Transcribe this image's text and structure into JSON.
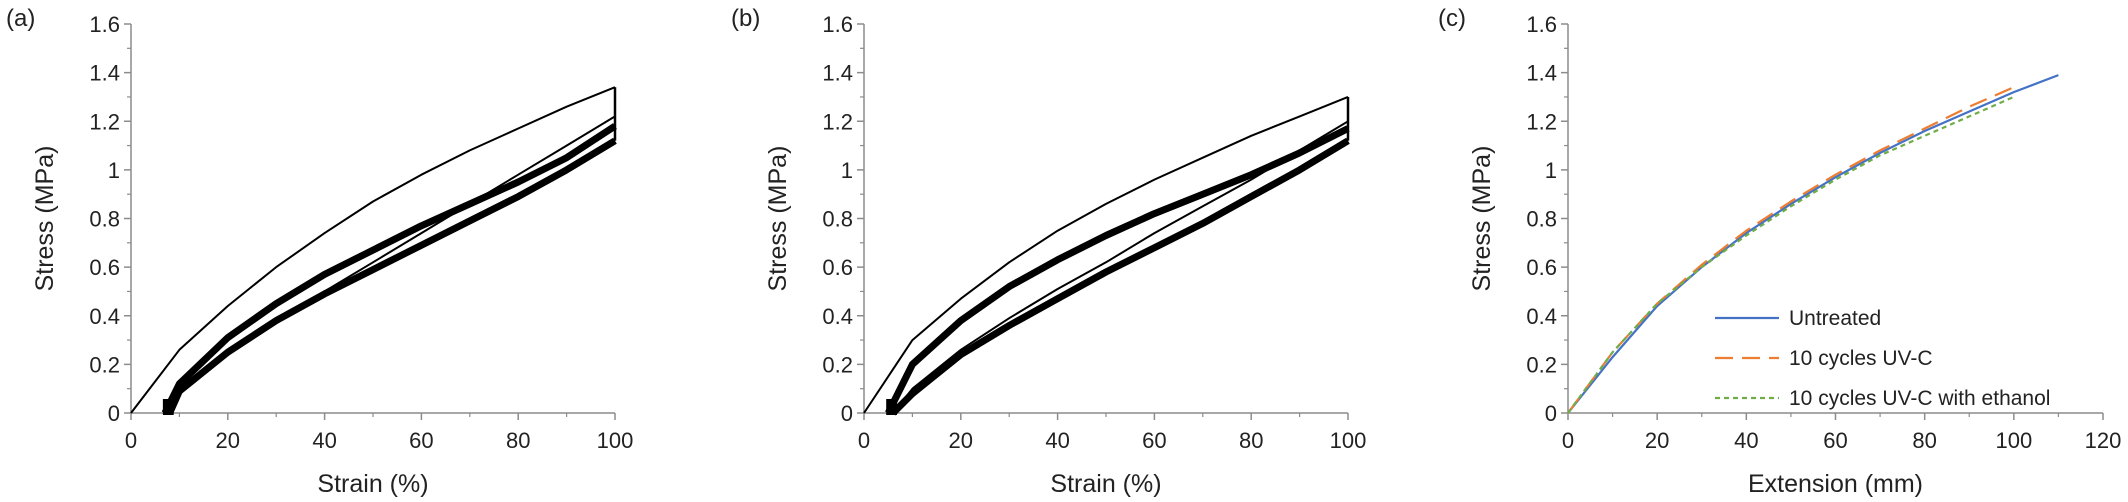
{
  "chart_data": [
    {
      "panel_label": "(a)",
      "type": "line",
      "xlabel": "Strain (%)",
      "ylabel": "Stress (MPa)",
      "xlim": [
        0,
        100
      ],
      "ylim": [
        0,
        1.6
      ],
      "xticks": [
        0,
        20,
        40,
        60,
        80,
        100
      ],
      "yticks": [
        0,
        0.2,
        0.4,
        0.6,
        0.8,
        1,
        1.2,
        1.4,
        1.6
      ],
      "grid": false,
      "series_color": "#000000",
      "series": [
        {
          "role": "first loading",
          "x": [
            0,
            10,
            20,
            30,
            40,
            50,
            60,
            70,
            80,
            90,
            100
          ],
          "y": [
            0,
            0.26,
            0.44,
            0.6,
            0.74,
            0.87,
            0.98,
            1.08,
            1.17,
            1.26,
            1.34
          ]
        },
        {
          "role": "first unloading",
          "x": [
            100,
            90,
            80,
            70,
            60,
            50,
            40,
            30,
            20,
            10,
            8
          ],
          "y": [
            1.22,
            1.1,
            0.98,
            0.86,
            0.74,
            0.62,
            0.5,
            0.38,
            0.25,
            0.08,
            0
          ]
        },
        {
          "role": "repeated loading",
          "x": [
            7,
            10,
            20,
            30,
            40,
            50,
            60,
            70,
            80,
            90,
            100
          ],
          "y": [
            0,
            0.12,
            0.31,
            0.45,
            0.57,
            0.67,
            0.77,
            0.86,
            0.95,
            1.05,
            1.18
          ]
        },
        {
          "role": "repeated unloading",
          "x": [
            100,
            90,
            80,
            70,
            60,
            50,
            40,
            30,
            20,
            10,
            8
          ],
          "y": [
            1.12,
            1.0,
            0.89,
            0.79,
            0.69,
            0.59,
            0.49,
            0.38,
            0.25,
            0.09,
            0
          ]
        }
      ]
    },
    {
      "panel_label": "(b)",
      "type": "line",
      "xlabel": "Strain (%)",
      "ylabel": "Stress (MPa)",
      "xlim": [
        0,
        100
      ],
      "ylim": [
        0,
        1.6
      ],
      "xticks": [
        0,
        20,
        40,
        60,
        80,
        100
      ],
      "yticks": [
        0,
        0.2,
        0.4,
        0.6,
        0.8,
        1,
        1.2,
        1.4,
        1.6
      ],
      "grid": false,
      "series_color": "#000000",
      "series": [
        {
          "role": "first loading",
          "x": [
            0,
            10,
            20,
            30,
            40,
            50,
            60,
            70,
            80,
            90,
            100
          ],
          "y": [
            0,
            0.3,
            0.47,
            0.62,
            0.75,
            0.86,
            0.96,
            1.05,
            1.14,
            1.22,
            1.3
          ]
        },
        {
          "role": "first unloading",
          "x": [
            100,
            90,
            80,
            70,
            60,
            50,
            40,
            30,
            20,
            10,
            6
          ],
          "y": [
            1.2,
            1.08,
            0.96,
            0.85,
            0.74,
            0.62,
            0.51,
            0.39,
            0.26,
            0.1,
            0
          ]
        },
        {
          "role": "repeated loading",
          "x": [
            5,
            10,
            20,
            30,
            40,
            50,
            60,
            70,
            80,
            90,
            100
          ],
          "y": [
            0,
            0.2,
            0.38,
            0.52,
            0.63,
            0.73,
            0.82,
            0.9,
            0.98,
            1.07,
            1.17
          ]
        },
        {
          "role": "repeated unloading",
          "x": [
            100,
            90,
            80,
            70,
            60,
            50,
            40,
            30,
            20,
            10,
            6
          ],
          "y": [
            1.12,
            1.0,
            0.89,
            0.78,
            0.68,
            0.58,
            0.47,
            0.36,
            0.24,
            0.08,
            0
          ]
        }
      ]
    },
    {
      "panel_label": "(c)",
      "type": "line",
      "xlabel": "Extension (mm)",
      "ylabel": "Stress (MPa)",
      "xlim": [
        0,
        120
      ],
      "ylim": [
        0,
        1.6
      ],
      "xticks": [
        0,
        20,
        40,
        60,
        80,
        100,
        120
      ],
      "yticks": [
        0,
        0.2,
        0.4,
        0.6,
        0.8,
        1,
        1.2,
        1.4,
        1.6
      ],
      "grid": false,
      "legend_position": "bottom-right",
      "series": [
        {
          "name": "Untreated",
          "color": "#4472C4",
          "dash": "solid",
          "x": [
            0,
            10,
            20,
            30,
            40,
            50,
            60,
            70,
            80,
            90,
            100,
            110
          ],
          "y": [
            0,
            0.23,
            0.44,
            0.6,
            0.74,
            0.86,
            0.97,
            1.07,
            1.16,
            1.24,
            1.32,
            1.39
          ]
        },
        {
          "name": "10 cycles UV-C",
          "color": "#ED7D31",
          "dash": "long",
          "x": [
            0,
            10,
            20,
            30,
            40,
            50,
            60,
            70,
            80,
            90,
            100
          ],
          "y": [
            0,
            0.25,
            0.45,
            0.61,
            0.75,
            0.87,
            0.98,
            1.08,
            1.17,
            1.26,
            1.34
          ]
        },
        {
          "name": "10 cycles UV-C with ethanol",
          "color": "#70AD47",
          "dash": "short",
          "x": [
            0,
            10,
            20,
            30,
            40,
            50,
            60,
            70,
            80,
            90,
            100
          ],
          "y": [
            0,
            0.25,
            0.45,
            0.6,
            0.73,
            0.85,
            0.96,
            1.06,
            1.14,
            1.22,
            1.3
          ]
        }
      ]
    }
  ]
}
